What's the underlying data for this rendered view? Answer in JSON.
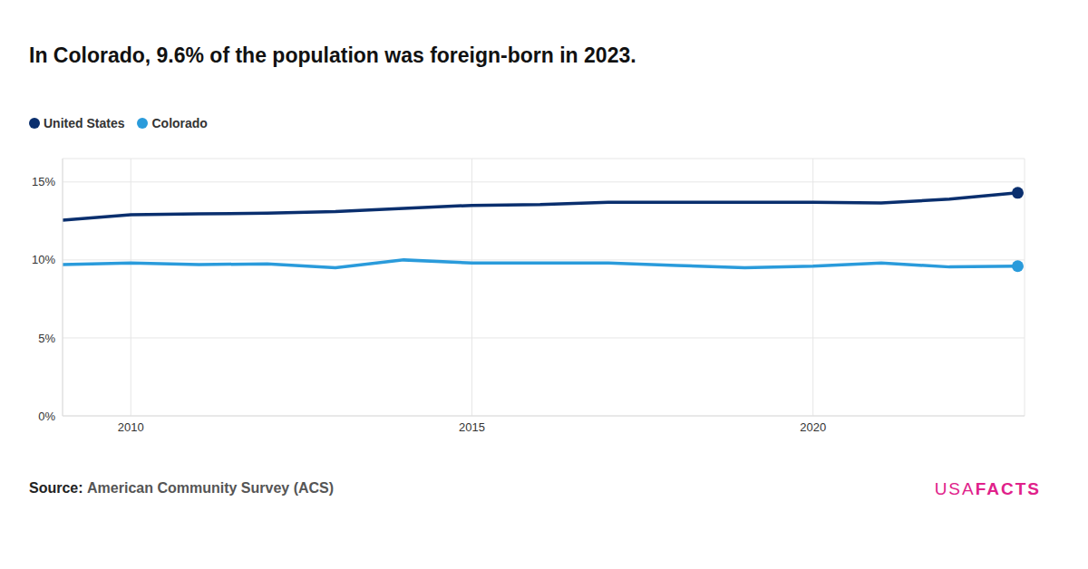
{
  "chart_data": {
    "type": "line",
    "title": "In Colorado, 9.6% of the population was foreign-born in 2023.",
    "x": [
      2009,
      2010,
      2011,
      2012,
      2013,
      2014,
      2015,
      2016,
      2017,
      2018,
      2019,
      2020,
      2021,
      2022,
      2023
    ],
    "series": [
      {
        "name": "United States",
        "color": "#0a2f6e",
        "marker": "end",
        "values": [
          12.55,
          12.9,
          12.95,
          13.0,
          13.1,
          13.3,
          13.5,
          13.55,
          13.7,
          13.7,
          13.7,
          13.7,
          13.65,
          13.9,
          14.3
        ]
      },
      {
        "name": "Colorado",
        "color": "#2a9bdb",
        "marker": "end",
        "values": [
          9.7,
          9.8,
          9.7,
          9.75,
          9.5,
          10.0,
          9.8,
          9.8,
          9.8,
          9.65,
          9.5,
          9.6,
          9.8,
          9.55,
          9.6
        ]
      }
    ],
    "xlim": [
      2009,
      2023.1
    ],
    "xticks": [
      2010,
      2015,
      2020
    ],
    "ylim": [
      0,
      16.5
    ],
    "yticks": [
      {
        "value": 0,
        "label": "0%"
      },
      {
        "value": 5,
        "label": "5%"
      },
      {
        "value": 10,
        "label": "10%"
      },
      {
        "value": 15,
        "label": "15%"
      }
    ],
    "grid": true,
    "legend": "top-left",
    "source_label": "Source:",
    "source": "American Community Survey (ACS)",
    "logo": [
      "USA",
      "FACTS"
    ]
  }
}
